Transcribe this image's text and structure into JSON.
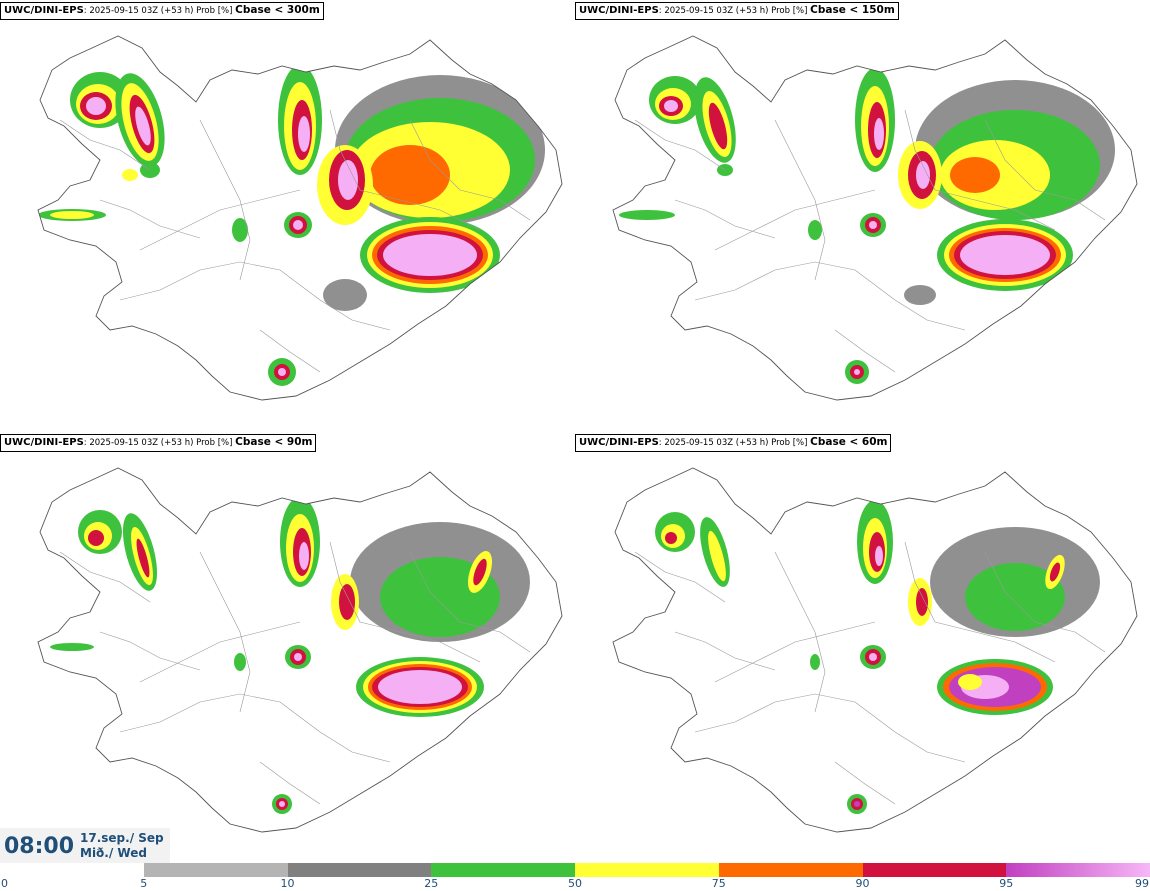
{
  "panels": [
    {
      "model": "UWC/DINI-EPS",
      "meta": ": 2025-09-15 03Z (+53 h) Prob [%] ",
      "threshold": "Cbase < 300m"
    },
    {
      "model": "UWC/DINI-EPS",
      "meta": ": 2025-09-15 03Z (+53 h) Prob [%] ",
      "threshold": "Cbase < 150m"
    },
    {
      "model": "UWC/DINI-EPS",
      "meta": ": 2025-09-15 03Z (+53 h) Prob [%] ",
      "threshold": "Cbase < 90m"
    },
    {
      "model": "UWC/DINI-EPS",
      "meta": ": 2025-09-15 03Z (+53 h) Prob [%] ",
      "threshold": "Cbase < 60m"
    }
  ],
  "time": {
    "clock": "08:00",
    "date_line1": "17.sep./ Sep",
    "date_line2": "Mið./ Wed"
  },
  "colorbar": {
    "ticks": [
      "0",
      "5",
      "10",
      "25",
      "50",
      "75",
      "90",
      "95",
      "99"
    ],
    "colors": [
      "#ffffff",
      "#b4b4b4",
      "#808080",
      "#3ec23e",
      "#ffff33",
      "#ff6a00",
      "#d1123f",
      "#c040c0"
    ]
  }
}
